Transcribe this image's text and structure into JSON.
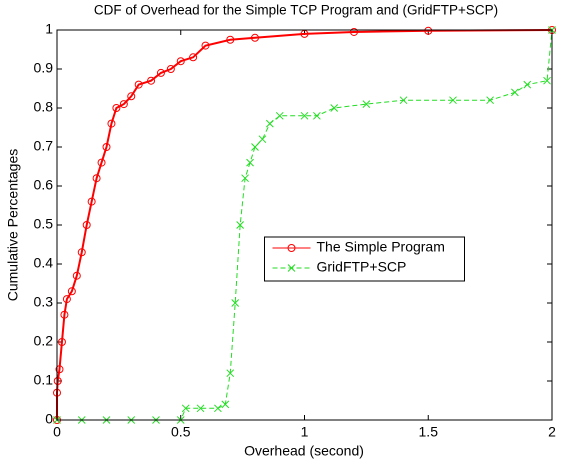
{
  "chart_data": {
    "type": "line",
    "title": "CDF of Overhead for the Simple TCP Program and (GridFTP+SCP)",
    "x_label": "Overhead (second)",
    "y_label": "Cumulative Percentages",
    "xlim": [
      0,
      2
    ],
    "ylim": [
      0,
      1
    ],
    "xticks": [
      0,
      0.5,
      1,
      1.5,
      2
    ],
    "yticks": [
      0,
      0.1,
      0.2,
      0.3,
      0.4,
      0.5,
      0.6,
      0.7,
      0.8,
      0.9,
      1
    ],
    "grid": false,
    "legend_loc": "center",
    "series": [
      {
        "name": "The Simple Program",
        "color": "#ff0000",
        "line_style": "solid",
        "marker": "o",
        "x": [
          0,
          0,
          0.003,
          0.01,
          0.02,
          0.03,
          0.04,
          0.06,
          0.08,
          0.1,
          0.12,
          0.14,
          0.16,
          0.18,
          0.2,
          0.22,
          0.24,
          0.27,
          0.3,
          0.33,
          0.38,
          0.42,
          0.46,
          0.5,
          0.55,
          0.6,
          0.7,
          0.8,
          1.0,
          1.2,
          1.5,
          2.0
        ],
        "values": [
          0,
          0.07,
          0.1,
          0.13,
          0.2,
          0.27,
          0.31,
          0.33,
          0.37,
          0.43,
          0.5,
          0.56,
          0.62,
          0.66,
          0.7,
          0.76,
          0.8,
          0.81,
          0.83,
          0.86,
          0.87,
          0.89,
          0.9,
          0.92,
          0.93,
          0.96,
          0.975,
          0.98,
          0.99,
          0.995,
          0.998,
          1.0
        ]
      },
      {
        "name": "GridFTP+SCP",
        "color": "#22dd22",
        "line_style": "dashed",
        "marker": "x",
        "x": [
          0,
          0.1,
          0.2,
          0.3,
          0.4,
          0.5,
          0.52,
          0.58,
          0.65,
          0.68,
          0.7,
          0.72,
          0.74,
          0.76,
          0.78,
          0.8,
          0.83,
          0.86,
          0.9,
          1.0,
          1.05,
          1.12,
          1.25,
          1.4,
          1.6,
          1.75,
          1.85,
          1.9,
          1.98,
          2.0
        ],
        "values": [
          0,
          0,
          0,
          0,
          0,
          0,
          0.03,
          0.03,
          0.03,
          0.04,
          0.12,
          0.3,
          0.5,
          0.62,
          0.66,
          0.7,
          0.72,
          0.76,
          0.78,
          0.78,
          0.78,
          0.8,
          0.81,
          0.82,
          0.82,
          0.82,
          0.84,
          0.86,
          0.87,
          1.0
        ]
      }
    ]
  }
}
